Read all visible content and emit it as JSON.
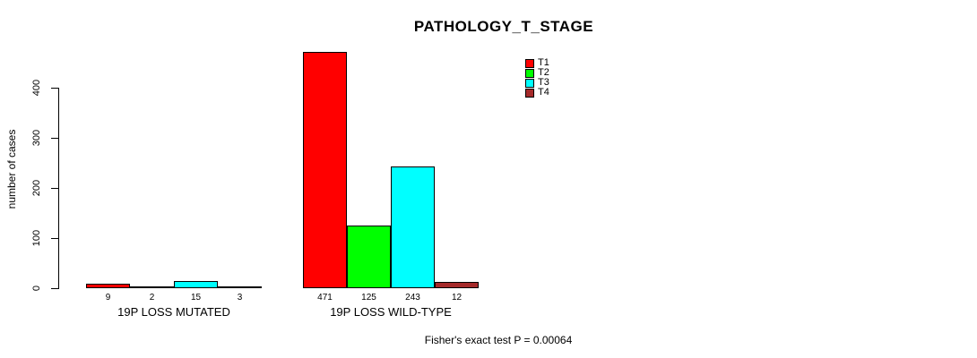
{
  "chart_data": {
    "type": "bar",
    "title": "PATHOLOGY_T_STAGE",
    "ylabel": "number of cases",
    "xlabel": "",
    "ylim": [
      0,
      400
    ],
    "yticks": [
      0,
      100,
      200,
      300,
      400
    ],
    "grid": false,
    "legend_position": "top-right",
    "categories": [
      "19P LOSS MUTATED",
      "19P LOSS WILD-TYPE"
    ],
    "series": [
      {
        "name": "T1",
        "color": "#FF0000",
        "values": [
          9,
          471
        ]
      },
      {
        "name": "T2",
        "color": "#00FF00",
        "values": [
          2,
          125
        ]
      },
      {
        "name": "T3",
        "color": "#00FFFF",
        "values": [
          15,
          243
        ]
      },
      {
        "name": "T4",
        "color": "#A52A2A",
        "values": [
          3,
          12
        ]
      }
    ],
    "annotation": "Fisher's exact test P = 0.00064"
  }
}
